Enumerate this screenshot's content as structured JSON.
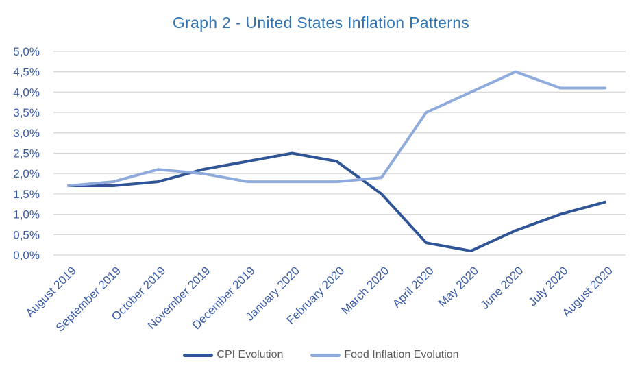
{
  "chart_data": {
    "type": "line",
    "title": "Graph 2 - United States Inflation Patterns",
    "categories": [
      "August 2019",
      "September 2019",
      "October 2019",
      "November 2019",
      "December 2019",
      "January 2020",
      "February 2020",
      "March 2020",
      "April 2020",
      "May 2020",
      "June 2020",
      "July 2020",
      "August 2020"
    ],
    "series": [
      {
        "name": "CPI Evolution",
        "color": "#2F5597",
        "values": [
          1.7,
          1.7,
          1.8,
          2.1,
          2.3,
          2.5,
          2.3,
          1.5,
          0.3,
          0.1,
          0.6,
          1.0,
          1.3
        ]
      },
      {
        "name": "Food Inflation Evolution",
        "color": "#8FAADC",
        "values": [
          1.7,
          1.8,
          2.1,
          2.0,
          1.8,
          1.8,
          1.8,
          1.9,
          3.5,
          4.0,
          4.5,
          4.1,
          4.1
        ]
      }
    ],
    "y_axis": {
      "min": 0,
      "max": 5,
      "step": 0.5,
      "unit": "%",
      "tick_labels": [
        "0,0%",
        "0,5%",
        "1,0%",
        "1,5%",
        "2,0%",
        "2,5%",
        "3,0%",
        "3,5%",
        "4,0%",
        "4,5%",
        "5,0%"
      ]
    },
    "grid": true,
    "legend_position": "bottom",
    "colors": {
      "title": "#2E75B6",
      "axis_text": "#3A5CA6",
      "gridline": "#D8D8D8",
      "legend_text": "#595959",
      "background": "#FFFFFF"
    }
  }
}
